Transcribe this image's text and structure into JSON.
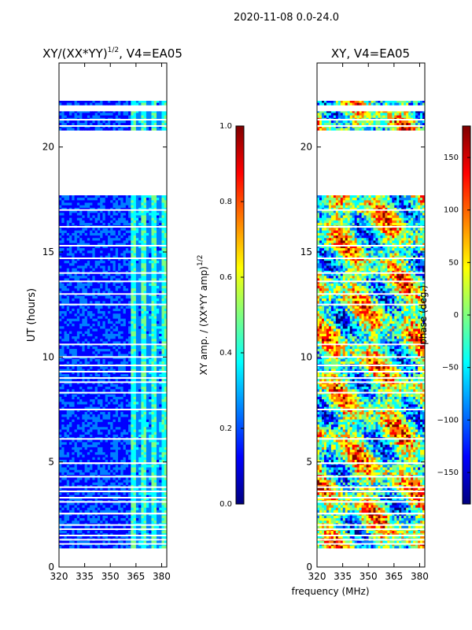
{
  "suptitle": "2020-11-08 0.0-24.0",
  "shared_xlabel": "frequency (MHz)",
  "colors": {
    "jet": [
      "#00007f",
      "#0000ff",
      "#007fff",
      "#00ffff",
      "#7fff7f",
      "#ffff00",
      "#ff7f00",
      "#ff0000",
      "#7f0000"
    ],
    "background": "#ffffff",
    "frame": "#000000"
  },
  "chart_data": [
    {
      "type": "heatmap",
      "title_main": "XY/(XX*YY)",
      "title_exp": "1/2",
      "title_tail": ", V4=EA05",
      "xlabel": "",
      "ylabel": "UT (hours)",
      "xlim": [
        320,
        383
      ],
      "ylim": [
        0,
        24
      ],
      "xticks": [
        320,
        335,
        350,
        365,
        380
      ],
      "xtick_labels": [
        "320",
        "335",
        "350",
        "365",
        "380"
      ],
      "yticks": [
        0,
        5,
        10,
        15,
        20
      ],
      "ytick_labels": [
        "0",
        "5",
        "10",
        "15",
        "20"
      ],
      "data_hours": [
        [
          0.9,
          2.5
        ],
        [
          2.6,
          4.9
        ],
        [
          5.0,
          17.7
        ],
        [
          20.8,
          21.7
        ],
        [
          22.0,
          22.2
        ]
      ],
      "gap_rows": [
        1.1,
        1.3,
        1.5,
        1.8,
        2.0,
        3.1,
        3.3,
        3.6,
        3.8,
        4.3,
        6.1,
        7.5,
        8.3,
        8.8,
        9.0,
        9.3,
        9.6,
        10.0,
        10.6,
        12.5,
        13.0,
        13.6,
        14.0,
        14.7,
        15.3,
        16.2,
        17.0,
        21.0,
        21.3
      ],
      "bright_band_mhz": [
        362,
        383
      ],
      "colorbar": {
        "label_main": "XY amp. / (XX*YY amp)",
        "label_exp": "1/2",
        "range": [
          0.0,
          1.0
        ],
        "ticks": [
          0.0,
          0.2,
          0.4,
          0.6,
          0.8,
          1.0
        ],
        "tick_labels": [
          "0.0",
          "0.2",
          "0.4",
          "0.6",
          "0.8",
          "1.0"
        ]
      }
    },
    {
      "type": "heatmap",
      "title": "XY, V4=EA05",
      "xlabel": "",
      "ylabel": "",
      "xlim": [
        320,
        383
      ],
      "ylim": [
        0,
        24
      ],
      "xticks": [
        320,
        335,
        350,
        365,
        380
      ],
      "xtick_labels": [
        "320",
        "335",
        "350",
        "365",
        "380"
      ],
      "yticks": [
        0,
        5,
        10,
        15,
        20
      ],
      "ytick_labels": [
        "0",
        "5",
        "10",
        "15",
        "20"
      ],
      "data_hours": [
        [
          0.9,
          2.5
        ],
        [
          2.6,
          4.9
        ],
        [
          5.0,
          17.7
        ],
        [
          20.8,
          21.7
        ],
        [
          22.0,
          22.2
        ]
      ],
      "gap_rows": [
        1.1,
        1.3,
        1.5,
        1.8,
        2.0,
        3.1,
        3.3,
        3.6,
        3.8,
        4.3,
        6.1,
        7.5,
        8.3,
        8.8,
        9.0,
        9.3,
        9.6,
        10.0,
        10.6,
        12.5,
        13.0,
        13.6,
        14.0,
        14.7,
        15.3,
        16.2,
        17.0,
        21.0,
        21.3
      ],
      "colorbar": {
        "label": "phase (deg.)",
        "range": [
          -180,
          180
        ],
        "ticks": [
          -150,
          -100,
          -50,
          0,
          50,
          100,
          150
        ],
        "tick_labels": [
          "−150",
          "−100",
          "−50",
          "0",
          "50",
          "100",
          "150"
        ]
      }
    }
  ]
}
